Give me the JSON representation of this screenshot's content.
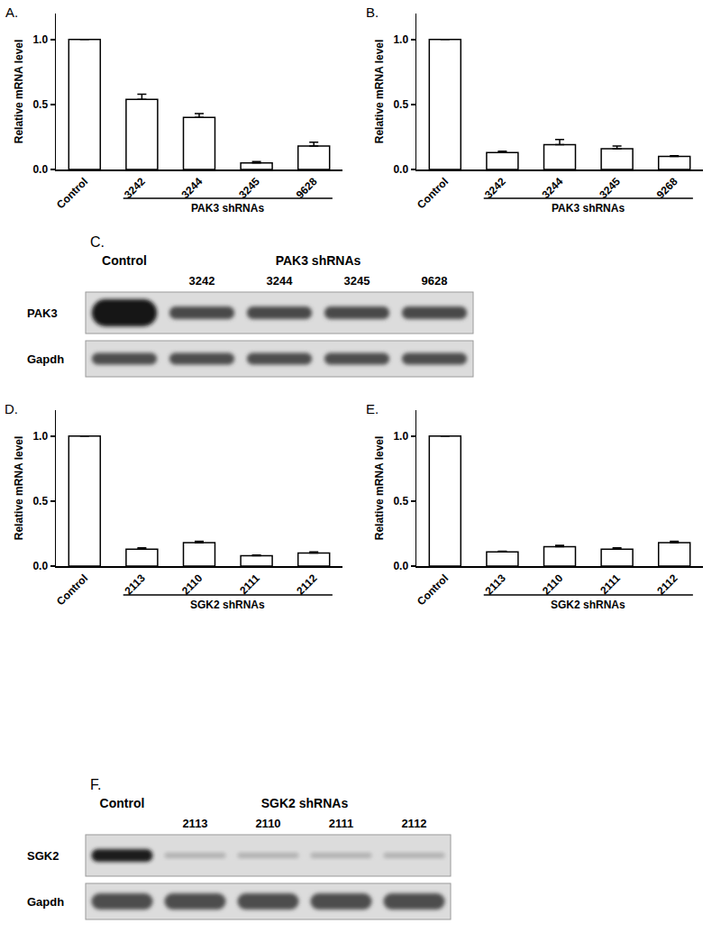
{
  "chart_data": [
    {
      "type": "bar",
      "panel": "A.",
      "y_label": "Relative mRNA level",
      "group_label": "PAK3 shRNAs",
      "categories": [
        "Control",
        "3242",
        "3244",
        "3245",
        "9628"
      ],
      "values": [
        1.0,
        0.54,
        0.4,
        0.05,
        0.18
      ],
      "errors": [
        null,
        0.04,
        0.03,
        0.01,
        0.03
      ],
      "color": "#ffffff",
      "grid": false,
      "ylim": [
        0,
        1.2
      ],
      "yticks": [
        {
          "value": 0,
          "label": "0.0"
        },
        {
          "value": 0.5,
          "label": "0.5"
        },
        {
          "value": 1,
          "label": "1.0"
        }
      ]
    },
    {
      "type": "bar",
      "panel": "B.",
      "y_label": "Relative mRNA level",
      "group_label": "PAK3 shRNAs",
      "categories": [
        "Control",
        "3242",
        "3244",
        "3245",
        "9268"
      ],
      "values": [
        1.0,
        0.13,
        0.19,
        0.16,
        0.1
      ],
      "errors": [
        null,
        0.01,
        0.04,
        0.02,
        0.005
      ],
      "color": "#ffffff",
      "grid": false,
      "ylim": [
        0,
        1.2
      ],
      "yticks": [
        {
          "value": 0,
          "label": "0.0"
        },
        {
          "value": 0.5,
          "label": "0.5"
        },
        {
          "value": 1,
          "label": "1.0"
        }
      ]
    },
    {
      "type": "bar",
      "panel": "D.",
      "y_label": "Relative mRNA level",
      "group_label": "SGK2 shRNAs",
      "categories": [
        "Control",
        "2113",
        "2110",
        "2111",
        "2112"
      ],
      "values": [
        1.0,
        0.13,
        0.18,
        0.08,
        0.1
      ],
      "errors": [
        null,
        0.01,
        0.01,
        0.005,
        0.01
      ],
      "color": "#ffffff",
      "grid": false,
      "ylim": [
        0,
        1.2
      ],
      "yticks": [
        {
          "value": 0,
          "label": "0.0"
        },
        {
          "value": 0.5,
          "label": "0.5"
        },
        {
          "value": 1,
          "label": "1.0"
        }
      ]
    },
    {
      "type": "bar",
      "panel": "E.",
      "y_label": "Relative mRNA level",
      "group_label": "SGK2 shRNAs",
      "categories": [
        "Control",
        "2113",
        "2110",
        "2111",
        "2112"
      ],
      "values": [
        1.0,
        0.11,
        0.15,
        0.13,
        0.18
      ],
      "errors": [
        null,
        0.005,
        0.01,
        0.01,
        0.01
      ],
      "color": "#ffffff",
      "grid": false,
      "ylim": [
        0,
        1.2
      ],
      "yticks": [
        {
          "value": 0,
          "label": "0.0"
        },
        {
          "value": 0.5,
          "label": "0.5"
        },
        {
          "value": 1,
          "label": "1.0"
        }
      ]
    }
  ],
  "blots": [
    {
      "panel": "C.",
      "group_label": "PAK3 shRNAs",
      "lanes": [
        "Control",
        "3242",
        "3244",
        "3245",
        "9628"
      ],
      "rows": [
        "PAK3",
        "Gapdh"
      ]
    },
    {
      "panel": "F.",
      "group_label": "SGK2 shRNAs",
      "lanes": [
        "Control",
        "2113",
        "2110",
        "2111",
        "2112"
      ],
      "rows": [
        "SGK2",
        "Gapdh"
      ]
    }
  ]
}
